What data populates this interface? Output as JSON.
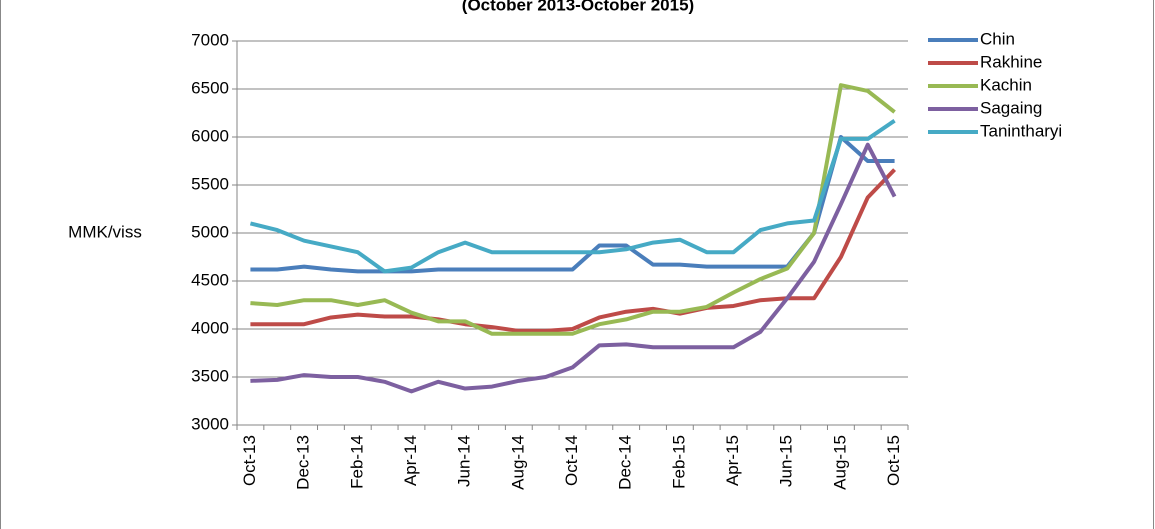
{
  "chart_data": {
    "type": "line",
    "subtitle": "(October 2013-October 2015)",
    "y_label": "MMK/viss",
    "categories": [
      "Oct-13",
      null,
      "Dec-13",
      null,
      "Feb-14",
      null,
      "Apr-14",
      null,
      "Jun-14",
      null,
      "Aug-14",
      null,
      "Oct-14",
      null,
      "Dec-14",
      null,
      "Feb-15",
      null,
      "Apr-15",
      null,
      "Jun-15",
      null,
      "Aug-15",
      null,
      "Oct-15"
    ],
    "series": [
      {
        "name": "Chin",
        "color": "#4a7ebb",
        "values": [
          4620,
          4620,
          4650,
          4620,
          4600,
          4600,
          4600,
          4620,
          4620,
          4620,
          4620,
          4620,
          4620,
          4870,
          4870,
          4670,
          4670,
          4650,
          4650,
          4650,
          4650,
          5000,
          6000,
          5750,
          5750
        ]
      },
      {
        "name": "Rakhine",
        "color": "#be4b48",
        "values": [
          4050,
          4050,
          4050,
          4120,
          4150,
          4130,
          4130,
          4100,
          4050,
          4020,
          3980,
          3980,
          4000,
          4120,
          4180,
          4210,
          4160,
          4220,
          4240,
          4300,
          4320,
          4320,
          4750,
          5370,
          5660
        ]
      },
      {
        "name": "Kachin",
        "color": "#98b954",
        "values": [
          4270,
          4250,
          4300,
          4300,
          4250,
          4300,
          4170,
          4080,
          4080,
          3950,
          3950,
          3950,
          3950,
          4050,
          4100,
          4180,
          4180,
          4230,
          4380,
          4520,
          4630,
          5000,
          6540,
          6480,
          6260
        ]
      },
      {
        "name": "Sagaing",
        "color": "#7d60a0",
        "values": [
          3460,
          3470,
          3520,
          3500,
          3500,
          3450,
          3350,
          3450,
          3380,
          3400,
          3460,
          3500,
          3600,
          3830,
          3840,
          3810,
          3810,
          3810,
          3810,
          3970,
          4320,
          4700,
          5300,
          5920,
          5380
        ]
      },
      {
        "name": "Tanintharyi",
        "color": "#46aac5",
        "values": [
          5100,
          5030,
          4920,
          4860,
          4800,
          4600,
          4640,
          4800,
          4900,
          4800,
          4800,
          4800,
          4800,
          4800,
          4830,
          4900,
          4930,
          4800,
          4800,
          5030,
          5100,
          5130,
          5980,
          5980,
          6170
        ]
      }
    ],
    "ylim": [
      3000,
      7000
    ],
    "yticks": [
      3000,
      3500,
      4000,
      4500,
      5000,
      5500,
      6000,
      6500,
      7000
    ],
    "grid": true,
    "legend": "right"
  }
}
